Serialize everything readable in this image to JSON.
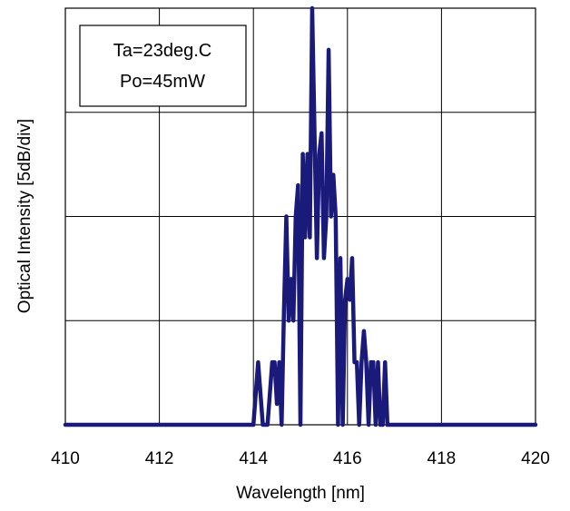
{
  "chart_data": {
    "type": "line",
    "xlabel": "Wavelength [nm]",
    "ylabel": "Optical Intensity [5dB/div]",
    "xlim": [
      410,
      420
    ],
    "ylim": [
      0,
      40
    ],
    "x_ticks": [
      "410",
      "412",
      "414",
      "416",
      "418",
      "420"
    ],
    "y_divisions": 4,
    "grid": true,
    "annotation": [
      "Ta=23deg.C",
      "Po=45mW"
    ],
    "line_color": "#1a1a7a",
    "series": [
      {
        "x": [
          410.0,
          414.0,
          414.1,
          414.2,
          414.3,
          414.4,
          414.45,
          414.5,
          414.55,
          414.6,
          414.65,
          414.7,
          414.75,
          414.8,
          414.85,
          414.9,
          414.95,
          415.0,
          415.05,
          415.1,
          415.15,
          415.2,
          415.25,
          415.3,
          415.35,
          415.4,
          415.45,
          415.5,
          415.55,
          415.6,
          415.65,
          415.7,
          415.75,
          415.8,
          415.85,
          415.9,
          415.95,
          416.0,
          416.05,
          416.1,
          416.15,
          416.2,
          416.25,
          416.3,
          416.35,
          416.4,
          416.45,
          416.5,
          416.55,
          416.6,
          416.65,
          416.7,
          416.75,
          416.8,
          416.85,
          416.9,
          420.0
        ],
        "y": [
          0,
          0,
          6,
          0,
          0,
          6,
          6,
          2,
          6,
          0,
          11,
          20,
          10,
          14,
          10,
          20,
          23,
          0,
          26,
          18,
          26,
          18,
          40,
          28,
          16,
          26,
          28,
          16,
          20,
          36,
          20,
          24,
          20,
          0,
          16,
          0,
          12,
          14,
          12,
          16,
          6,
          6,
          0,
          6,
          9,
          6,
          0,
          6,
          6,
          0,
          6,
          0,
          0,
          6,
          0,
          0,
          0
        ]
      }
    ]
  }
}
